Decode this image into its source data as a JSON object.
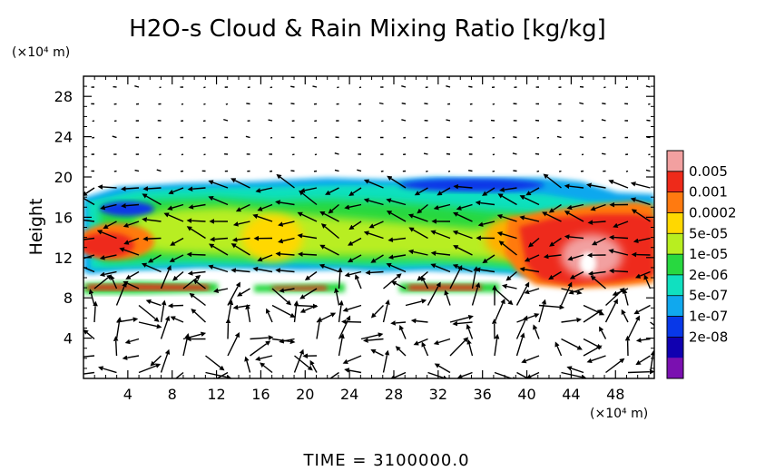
{
  "chart_data": {
    "type": "heatmap",
    "title": "H2O-s Cloud & Rain Mixing Ratio [kg/kg]",
    "ylabel": "Height",
    "y_unit_label": "(×10⁴ m)",
    "x_unit_label": "(×10⁴ m)",
    "footer": "TIME  =  3100000.0",
    "xlim": [
      0,
      51.5
    ],
    "ylim": [
      0,
      30
    ],
    "x_ticks": [
      4,
      8,
      12,
      16,
      20,
      24,
      28,
      32,
      36,
      40,
      44,
      48
    ],
    "y_ticks": [
      4,
      8,
      12,
      16,
      20,
      24,
      28
    ],
    "x_tick_labels": [
      "4",
      "8",
      "12",
      "16",
      "20",
      "24",
      "28",
      "32",
      "36",
      "40",
      "44",
      "48"
    ],
    "y_tick_labels": [
      "4",
      "8",
      "12",
      "16",
      "20",
      "24",
      "28"
    ],
    "colorbar": {
      "labels": [
        "0.005",
        "0.001",
        "0.0002",
        "5e-05",
        "1e-05",
        "2e-06",
        "5e-07",
        "1e-07",
        "2e-08"
      ],
      "colors": [
        "#f2a0a0",
        "#ee2a1a",
        "#ff7a10",
        "#ffd800",
        "#b8ee20",
        "#28d840",
        "#10e0c0",
        "#10a8ee",
        "#0838e8",
        "#1000b0",
        "#7a10b0"
      ]
    },
    "regions": [
      {
        "name": "upper cloud layer",
        "x": [
          0,
          51.5
        ],
        "y": [
          10.5,
          20
        ],
        "level": "1e-05 to 2e-06"
      },
      {
        "name": "core near x=16",
        "x": [
          13,
          19
        ],
        "y": [
          12,
          16
        ],
        "level": "0.0002"
      },
      {
        "name": "left core",
        "x": [
          0,
          6
        ],
        "y": [
          11,
          15
        ],
        "level": "0.001"
      },
      {
        "name": "right core",
        "x": [
          38,
          51.5
        ],
        "y": [
          8.5,
          17
        ],
        "level": "0.001 to 0.005"
      },
      {
        "name": "low thin layer",
        "x": [
          0,
          37
        ],
        "y": [
          8.4,
          9.6
        ],
        "level": "0.001"
      }
    ]
  }
}
